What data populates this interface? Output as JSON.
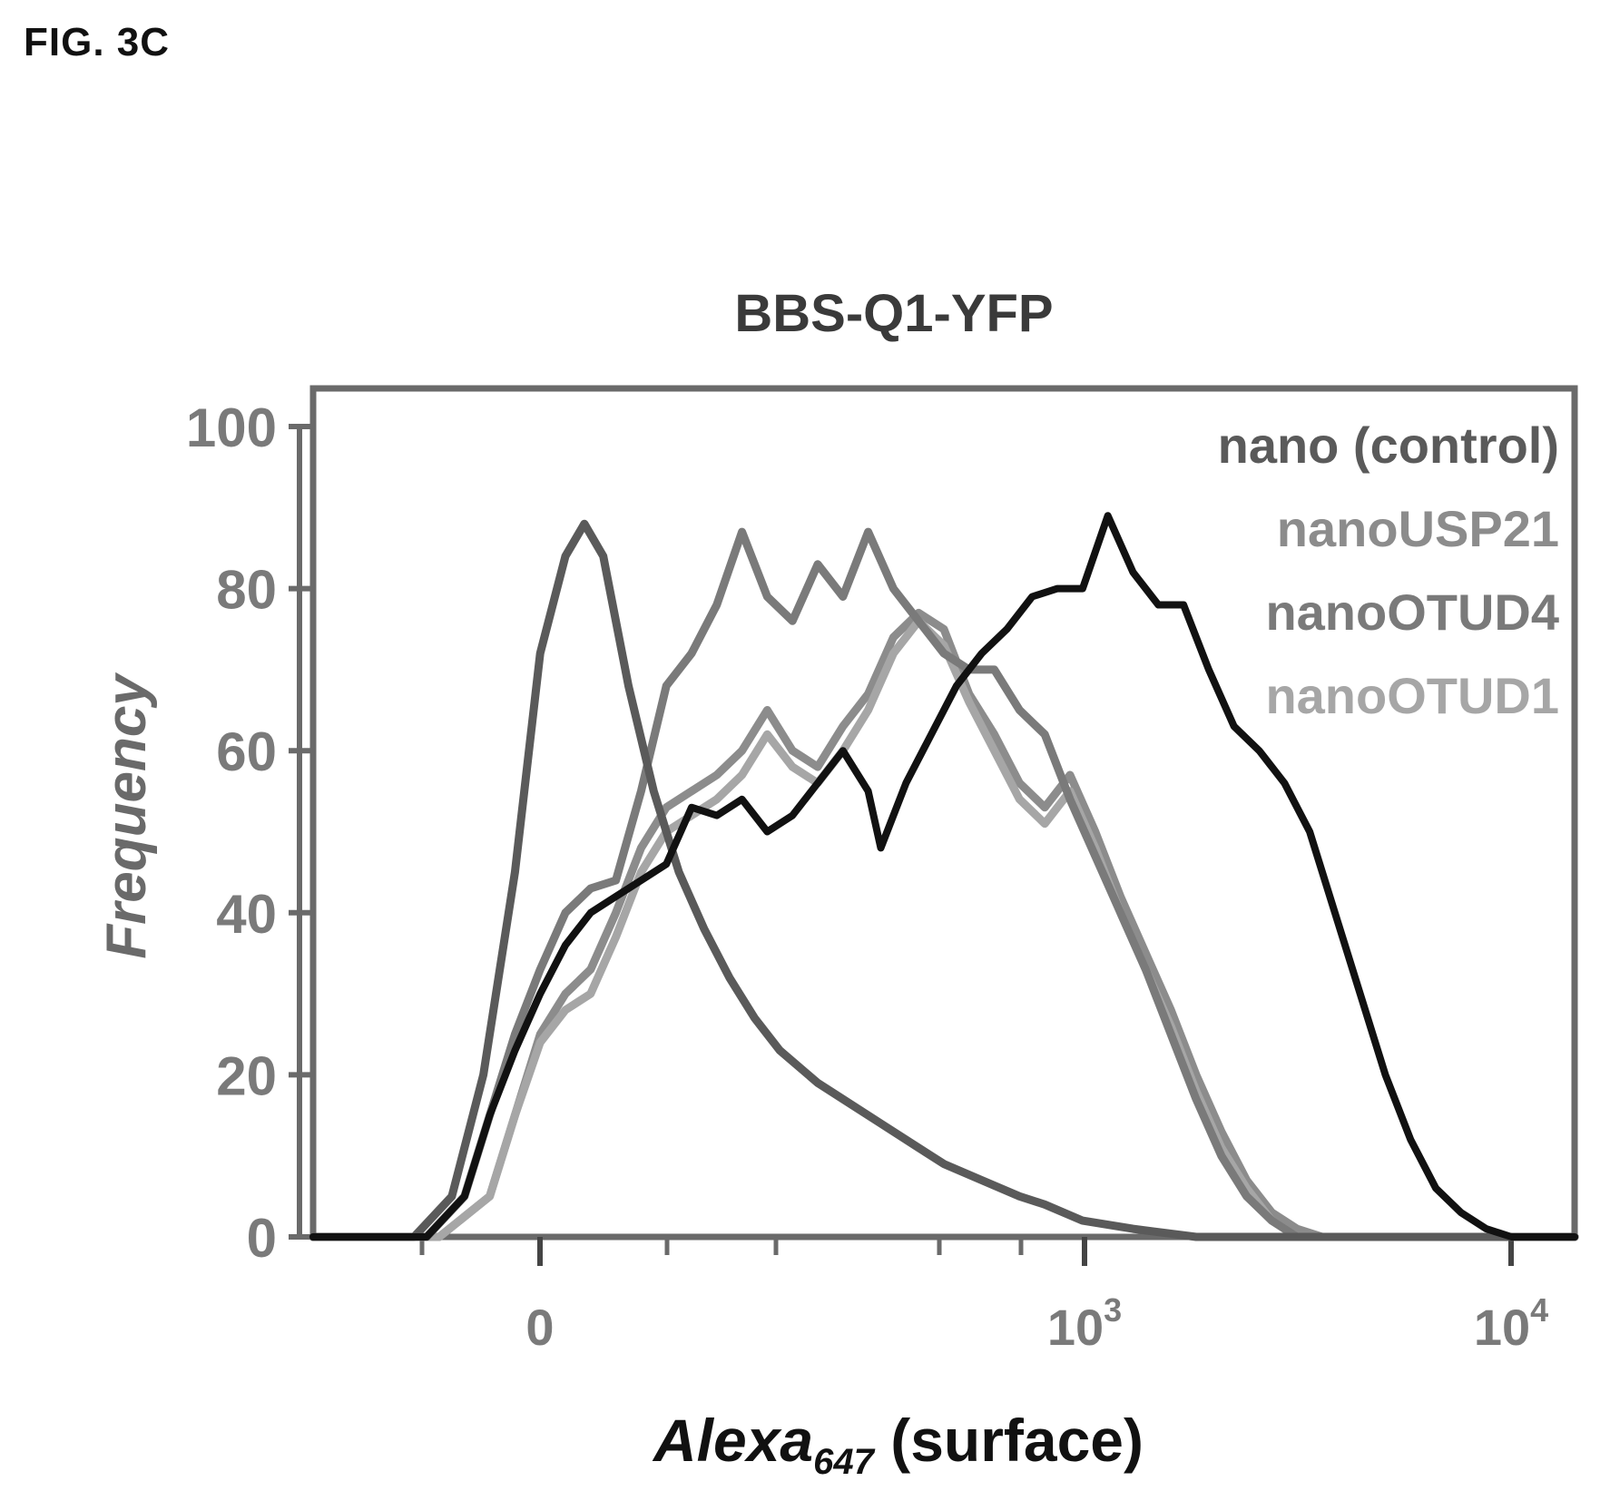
{
  "figure_label": "FIG. 3C",
  "chart_data": {
    "type": "line",
    "title": "BBS-Q1-YFP",
    "xlabel": "Alexa",
    "xlabel_sub": "647",
    "xlabel_suffix": " (surface)",
    "ylabel": "Frequency",
    "ylim": [
      0,
      105
    ],
    "y_ticks": [
      0,
      20,
      40,
      60,
      80,
      100
    ],
    "x_scale": "biexponential",
    "x_tick_labels": [
      {
        "base": "0",
        "exp": ""
      },
      {
        "base": "10",
        "exp": "3"
      },
      {
        "base": "10",
        "exp": "4"
      }
    ],
    "legend_position": "top-right",
    "grid": false,
    "series": [
      {
        "name": "nano (control)",
        "color": "#5a5a5a",
        "points": [
          [
            0.0,
            0
          ],
          [
            0.08,
            0
          ],
          [
            0.11,
            5
          ],
          [
            0.135,
            20
          ],
          [
            0.16,
            45
          ],
          [
            0.18,
            72
          ],
          [
            0.2,
            84
          ],
          [
            0.215,
            88
          ],
          [
            0.23,
            84
          ],
          [
            0.25,
            68
          ],
          [
            0.27,
            55
          ],
          [
            0.29,
            45
          ],
          [
            0.31,
            38
          ],
          [
            0.33,
            32
          ],
          [
            0.35,
            27
          ],
          [
            0.37,
            23
          ],
          [
            0.4,
            19
          ],
          [
            0.42,
            17
          ],
          [
            0.45,
            14
          ],
          [
            0.48,
            11
          ],
          [
            0.5,
            9
          ],
          [
            0.53,
            7
          ],
          [
            0.56,
            5
          ],
          [
            0.58,
            4
          ],
          [
            0.61,
            2
          ],
          [
            0.65,
            1
          ],
          [
            0.7,
            0
          ],
          [
            1.0,
            0
          ]
        ]
      },
      {
        "name": "nanoUSP21",
        "color": "#8c8c8c",
        "points": [
          [
            0.0,
            0
          ],
          [
            0.1,
            0
          ],
          [
            0.14,
            5
          ],
          [
            0.16,
            15
          ],
          [
            0.18,
            25
          ],
          [
            0.2,
            30
          ],
          [
            0.22,
            33
          ],
          [
            0.24,
            40
          ],
          [
            0.26,
            48
          ],
          [
            0.28,
            53
          ],
          [
            0.3,
            55
          ],
          [
            0.32,
            57
          ],
          [
            0.34,
            60
          ],
          [
            0.36,
            65
          ],
          [
            0.38,
            60
          ],
          [
            0.4,
            58
          ],
          [
            0.42,
            63
          ],
          [
            0.44,
            67
          ],
          [
            0.46,
            74
          ],
          [
            0.48,
            77
          ],
          [
            0.5,
            75
          ],
          [
            0.52,
            67
          ],
          [
            0.54,
            62
          ],
          [
            0.56,
            56
          ],
          [
            0.58,
            53
          ],
          [
            0.6,
            57
          ],
          [
            0.62,
            50
          ],
          [
            0.64,
            42
          ],
          [
            0.66,
            35
          ],
          [
            0.68,
            28
          ],
          [
            0.7,
            20
          ],
          [
            0.72,
            13
          ],
          [
            0.74,
            7
          ],
          [
            0.76,
            3
          ],
          [
            0.78,
            1
          ],
          [
            0.8,
            0
          ],
          [
            1.0,
            0
          ]
        ]
      },
      {
        "name": "nanoOTUD4",
        "color": "#7a7a7a",
        "points": [
          [
            0.0,
            0
          ],
          [
            0.09,
            0
          ],
          [
            0.12,
            5
          ],
          [
            0.14,
            15
          ],
          [
            0.16,
            25
          ],
          [
            0.18,
            33
          ],
          [
            0.2,
            40
          ],
          [
            0.22,
            43
          ],
          [
            0.24,
            44
          ],
          [
            0.26,
            55
          ],
          [
            0.28,
            68
          ],
          [
            0.3,
            72
          ],
          [
            0.32,
            78
          ],
          [
            0.34,
            87
          ],
          [
            0.36,
            79
          ],
          [
            0.38,
            76
          ],
          [
            0.4,
            83
          ],
          [
            0.42,
            79
          ],
          [
            0.44,
            87
          ],
          [
            0.46,
            80
          ],
          [
            0.48,
            76
          ],
          [
            0.5,
            72
          ],
          [
            0.52,
            70
          ],
          [
            0.54,
            70
          ],
          [
            0.56,
            65
          ],
          [
            0.58,
            62
          ],
          [
            0.6,
            54
          ],
          [
            0.62,
            47
          ],
          [
            0.64,
            40
          ],
          [
            0.66,
            33
          ],
          [
            0.68,
            25
          ],
          [
            0.7,
            17
          ],
          [
            0.72,
            10
          ],
          [
            0.74,
            5
          ],
          [
            0.76,
            2
          ],
          [
            0.78,
            0
          ],
          [
            1.0,
            0
          ]
        ]
      },
      {
        "name": "nanoOTUD1",
        "color": "#a6a6a6",
        "points": [
          [
            0.0,
            0
          ],
          [
            0.1,
            0
          ],
          [
            0.14,
            5
          ],
          [
            0.16,
            15
          ],
          [
            0.18,
            24
          ],
          [
            0.2,
            28
          ],
          [
            0.22,
            30
          ],
          [
            0.24,
            37
          ],
          [
            0.26,
            45
          ],
          [
            0.28,
            50
          ],
          [
            0.3,
            52
          ],
          [
            0.32,
            54
          ],
          [
            0.34,
            57
          ],
          [
            0.36,
            62
          ],
          [
            0.38,
            58
          ],
          [
            0.4,
            56
          ],
          [
            0.42,
            60
          ],
          [
            0.44,
            65
          ],
          [
            0.46,
            72
          ],
          [
            0.48,
            76
          ],
          [
            0.5,
            73
          ],
          [
            0.52,
            66
          ],
          [
            0.54,
            60
          ],
          [
            0.56,
            54
          ],
          [
            0.58,
            51
          ],
          [
            0.6,
            55
          ],
          [
            0.62,
            48
          ],
          [
            0.64,
            40
          ],
          [
            0.66,
            33
          ],
          [
            0.68,
            26
          ],
          [
            0.7,
            18
          ],
          [
            0.72,
            11
          ],
          [
            0.74,
            6
          ],
          [
            0.76,
            2
          ],
          [
            0.78,
            0
          ],
          [
            1.0,
            0
          ]
        ]
      },
      {
        "name": "",
        "color": "#111111",
        "points": [
          [
            0.0,
            0
          ],
          [
            0.09,
            0
          ],
          [
            0.12,
            5
          ],
          [
            0.14,
            15
          ],
          [
            0.16,
            23
          ],
          [
            0.18,
            30
          ],
          [
            0.2,
            36
          ],
          [
            0.22,
            40
          ],
          [
            0.24,
            42
          ],
          [
            0.26,
            44
          ],
          [
            0.28,
            46
          ],
          [
            0.3,
            53
          ],
          [
            0.32,
            52
          ],
          [
            0.34,
            54
          ],
          [
            0.36,
            50
          ],
          [
            0.38,
            52
          ],
          [
            0.4,
            56
          ],
          [
            0.42,
            60
          ],
          [
            0.44,
            55
          ],
          [
            0.45,
            48
          ],
          [
            0.47,
            56
          ],
          [
            0.49,
            62
          ],
          [
            0.51,
            68
          ],
          [
            0.53,
            72
          ],
          [
            0.55,
            75
          ],
          [
            0.57,
            79
          ],
          [
            0.59,
            80
          ],
          [
            0.61,
            80
          ],
          [
            0.63,
            89
          ],
          [
            0.65,
            82
          ],
          [
            0.67,
            78
          ],
          [
            0.69,
            78
          ],
          [
            0.71,
            70
          ],
          [
            0.73,
            63
          ],
          [
            0.75,
            60
          ],
          [
            0.77,
            56
          ],
          [
            0.79,
            50
          ],
          [
            0.81,
            40
          ],
          [
            0.83,
            30
          ],
          [
            0.85,
            20
          ],
          [
            0.87,
            12
          ],
          [
            0.89,
            6
          ],
          [
            0.91,
            3
          ],
          [
            0.93,
            1
          ],
          [
            0.95,
            0
          ],
          [
            1.0,
            0
          ]
        ]
      }
    ]
  }
}
